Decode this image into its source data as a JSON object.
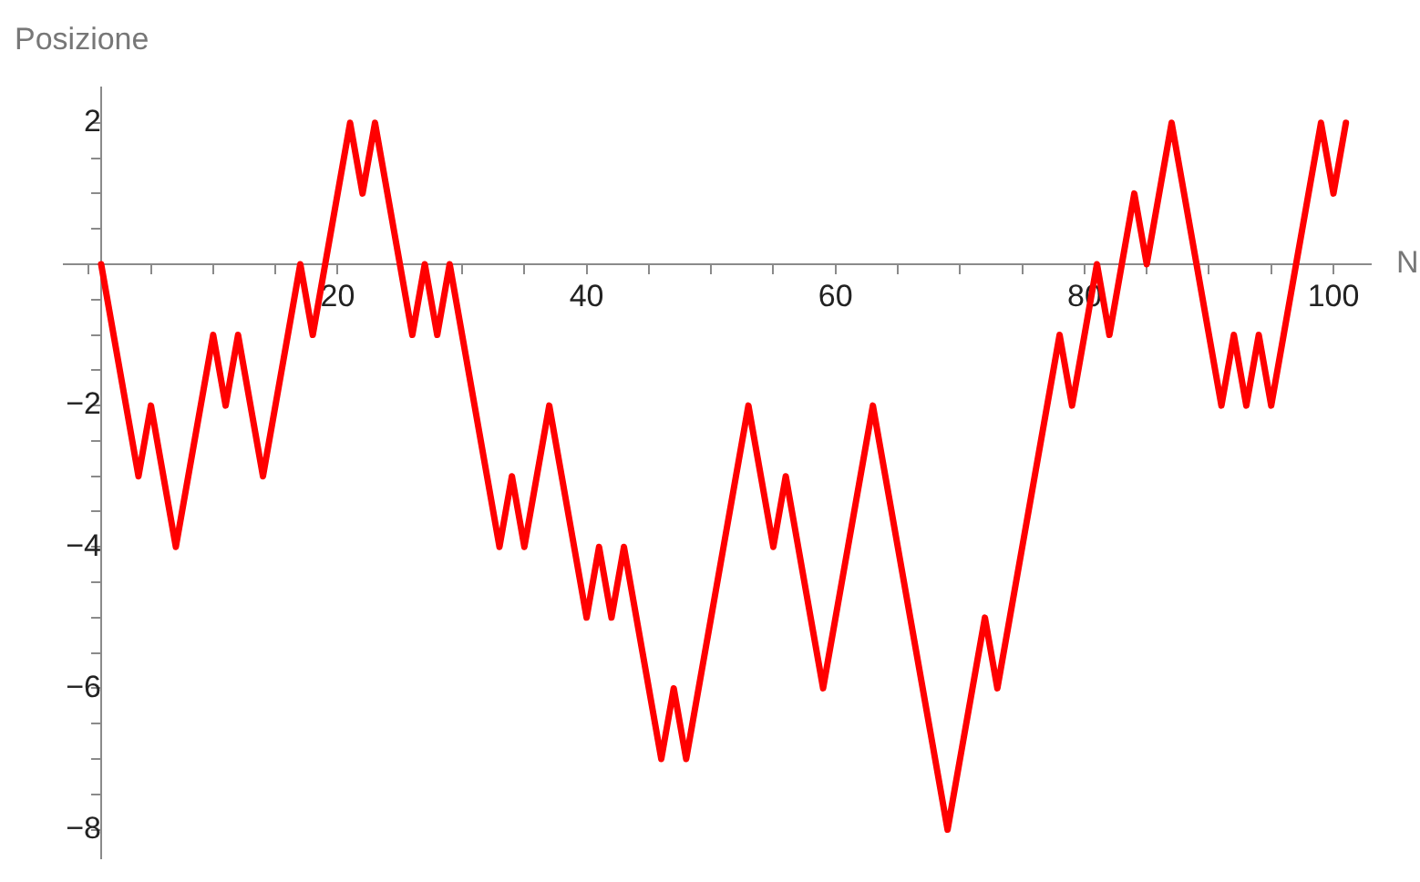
{
  "chart_data": {
    "type": "line",
    "xlabel": "N",
    "ylabel": "Posizione",
    "x": [
      1,
      2,
      3,
      4,
      5,
      6,
      7,
      8,
      9,
      10,
      11,
      12,
      13,
      14,
      15,
      16,
      17,
      18,
      19,
      20,
      21,
      22,
      23,
      24,
      25,
      26,
      27,
      28,
      29,
      30,
      31,
      32,
      33,
      34,
      35,
      36,
      37,
      38,
      39,
      40,
      41,
      42,
      43,
      44,
      45,
      46,
      47,
      48,
      49,
      50,
      51,
      52,
      53,
      54,
      55,
      56,
      57,
      58,
      59,
      60,
      61,
      62,
      63,
      64,
      65,
      66,
      67,
      68,
      69,
      70,
      71,
      72,
      73,
      74,
      75,
      76,
      77,
      78,
      79,
      80,
      81,
      82,
      83,
      84,
      85,
      86,
      87,
      88,
      89,
      90,
      91,
      92,
      93,
      94,
      95,
      96,
      97,
      98,
      99,
      100,
      101
    ],
    "series": [
      {
        "color": "#ff0000",
        "values": [
          0,
          -1,
          -2,
          -3,
          -2,
          -3,
          -4,
          -3,
          -2,
          -1,
          -2,
          -1,
          -2,
          -3,
          -2,
          -1,
          0,
          -1,
          0,
          1,
          2,
          1,
          2,
          1,
          0,
          -1,
          0,
          -1,
          0,
          -1,
          -2,
          -3,
          -4,
          -3,
          -4,
          -3,
          -2,
          -3,
          -4,
          -5,
          -4,
          -5,
          -4,
          -5,
          -6,
          -7,
          -6,
          -7,
          -6,
          -5,
          -4,
          -3,
          -2,
          -3,
          -4,
          -3,
          -4,
          -5,
          -6,
          -5,
          -4,
          -3,
          -2,
          -3,
          -4,
          -5,
          -6,
          -7,
          -8,
          -7,
          -6,
          -5,
          -6,
          -5,
          -4,
          -3,
          -2,
          -1,
          -2,
          -1,
          0,
          -1,
          0,
          1,
          0,
          1,
          2,
          1,
          0,
          -1,
          -2,
          -1,
          -2,
          -1,
          -2,
          -1,
          0,
          1,
          2,
          1,
          2
        ]
      }
    ],
    "xlim": [
      -2,
      103
    ],
    "ylim": [
      -8.4,
      2.5
    ],
    "xticks": [
      {
        "value": 0,
        "label": null
      },
      {
        "value": 5,
        "label": null
      },
      {
        "value": 10,
        "label": null
      },
      {
        "value": 15,
        "label": null
      },
      20,
      {
        "value": 25,
        "label": null
      },
      {
        "value": 30,
        "label": null
      },
      {
        "value": 35,
        "label": null
      },
      40,
      {
        "value": 45,
        "label": null
      },
      {
        "value": 50,
        "label": null
      },
      {
        "value": 55,
        "label": null
      },
      60,
      {
        "value": 65,
        "label": null
      },
      {
        "value": 70,
        "label": null
      },
      {
        "value": 75,
        "label": null
      },
      80,
      {
        "value": 85,
        "label": null
      },
      {
        "value": 90,
        "label": null
      },
      {
        "value": 95,
        "label": null
      },
      100
    ],
    "yticks": [
      {
        "value": -8,
        "label": "−8"
      },
      {
        "value": -7.5,
        "label": null
      },
      {
        "value": -7,
        "label": null
      },
      {
        "value": -6.5,
        "label": null
      },
      {
        "value": -6,
        "label": "−6"
      },
      {
        "value": -5.5,
        "label": null
      },
      {
        "value": -5,
        "label": null
      },
      {
        "value": -4.5,
        "label": null
      },
      {
        "value": -4,
        "label": "−4"
      },
      {
        "value": -3.5,
        "label": null
      },
      {
        "value": -3,
        "label": null
      },
      {
        "value": -2.5,
        "label": null
      },
      {
        "value": -2,
        "label": "−2"
      },
      {
        "value": -1.5,
        "label": null
      },
      {
        "value": -1,
        "label": null
      },
      {
        "value": -0.5,
        "label": null
      },
      {
        "value": 0,
        "label": null
      },
      {
        "value": 0.5,
        "label": null
      },
      {
        "value": 1,
        "label": null
      },
      {
        "value": 1.5,
        "label": null
      },
      2
    ],
    "grid": false,
    "line_style": "solid"
  }
}
